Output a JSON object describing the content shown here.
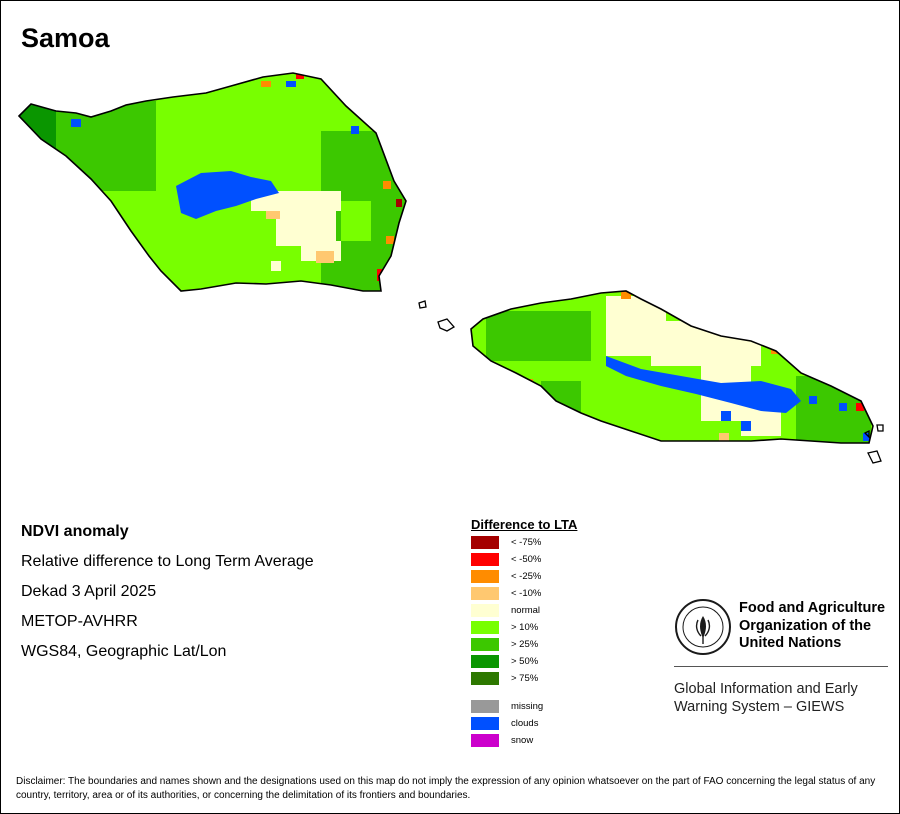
{
  "title": "Samoa",
  "info": {
    "heading": "NDVI anomaly",
    "lines": [
      "Relative difference to Long Term Average",
      "Dekad 3 April 2025",
      "METOP-AVHRR",
      "WGS84, Geographic Lat/Lon"
    ]
  },
  "legend": {
    "title": "Difference to LTA",
    "classes": [
      {
        "label": "< -75%",
        "color": "#a50000"
      },
      {
        "label": "< -50%",
        "color": "#ff0000"
      },
      {
        "label": "< -25%",
        "color": "#ff8c00"
      },
      {
        "label": "< -10%",
        "color": "#ffc870"
      },
      {
        "label": "normal",
        "color": "#ffffd2"
      },
      {
        "label": "> 10%",
        "color": "#78ff00"
      },
      {
        "label": "> 25%",
        "color": "#3cc800"
      },
      {
        "label": "> 50%",
        "color": "#0a9600"
      },
      {
        "label": "> 75%",
        "color": "#2d7800"
      }
    ],
    "extra": [
      {
        "label": "missing",
        "color": "#999999"
      },
      {
        "label": "clouds",
        "color": "#0050ff"
      },
      {
        "label": "snow",
        "color": "#cc00cc"
      }
    ]
  },
  "logo": {
    "org_name": "Food and Agriculture Organization of the United Nations",
    "letters": "FAO",
    "motto": "FIAT PANIS",
    "subtitle": "Global Information and Early Warning System – GIEWS"
  },
  "disclaimer": "Disclaimer: The boundaries and names shown and the designations used on this map do not imply the expression of any opinion whatsoever on the part of FAO concerning the legal status of any country, territory, area or of its authorities, or concerning the delimitation of its frontiers and boundaries."
}
